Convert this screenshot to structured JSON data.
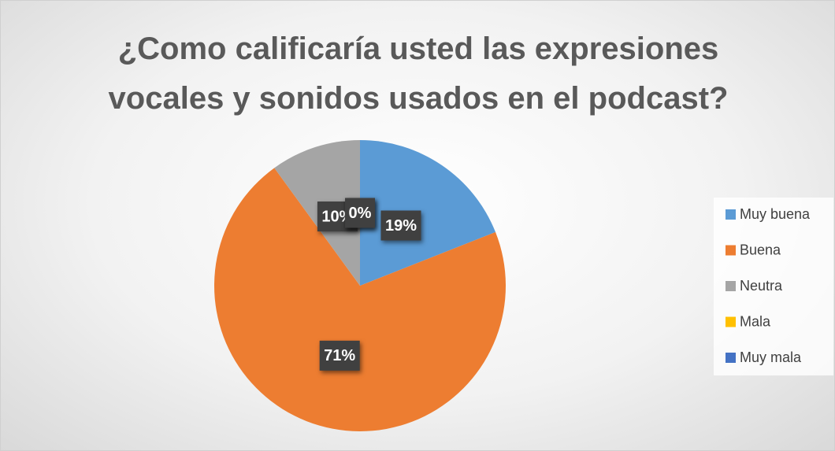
{
  "chart_data": {
    "type": "pie",
    "title": "¿Como calificaría usted las expresiones vocales y sonidos usados en el podcast?",
    "categories": [
      "Muy buena",
      "Buena",
      "Neutra",
      "Mala",
      "Muy mala"
    ],
    "values": [
      19,
      71,
      10,
      0,
      0
    ],
    "value_labels": [
      "19%",
      "71%",
      "10%",
      "0%",
      "0%"
    ],
    "colors": [
      "#5b9bd5",
      "#ed7d31",
      "#a5a5a5",
      "#ffc000",
      "#4472c4"
    ],
    "legend": "right"
  }
}
